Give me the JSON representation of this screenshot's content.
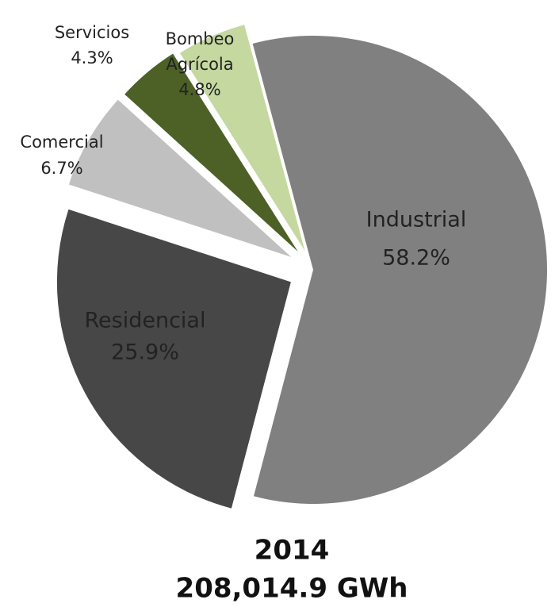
{
  "chart_data": {
    "type": "pie",
    "title": "2014",
    "subtitle": "208,014.9 GWh",
    "categories": [
      "Industrial",
      "Residencial",
      "Comercial",
      "Servicios",
      "Bombeo Agrícola"
    ],
    "values": [
      58.2,
      25.9,
      6.7,
      4.3,
      4.8
    ],
    "value_labels": [
      "58.2%",
      "25.9%",
      "6.7%",
      "4.3%",
      "4.8%"
    ],
    "colors": [
      "#808080",
      "#474747",
      "#c0c0c0",
      "#4d6126",
      "#c5d8a0"
    ]
  }
}
